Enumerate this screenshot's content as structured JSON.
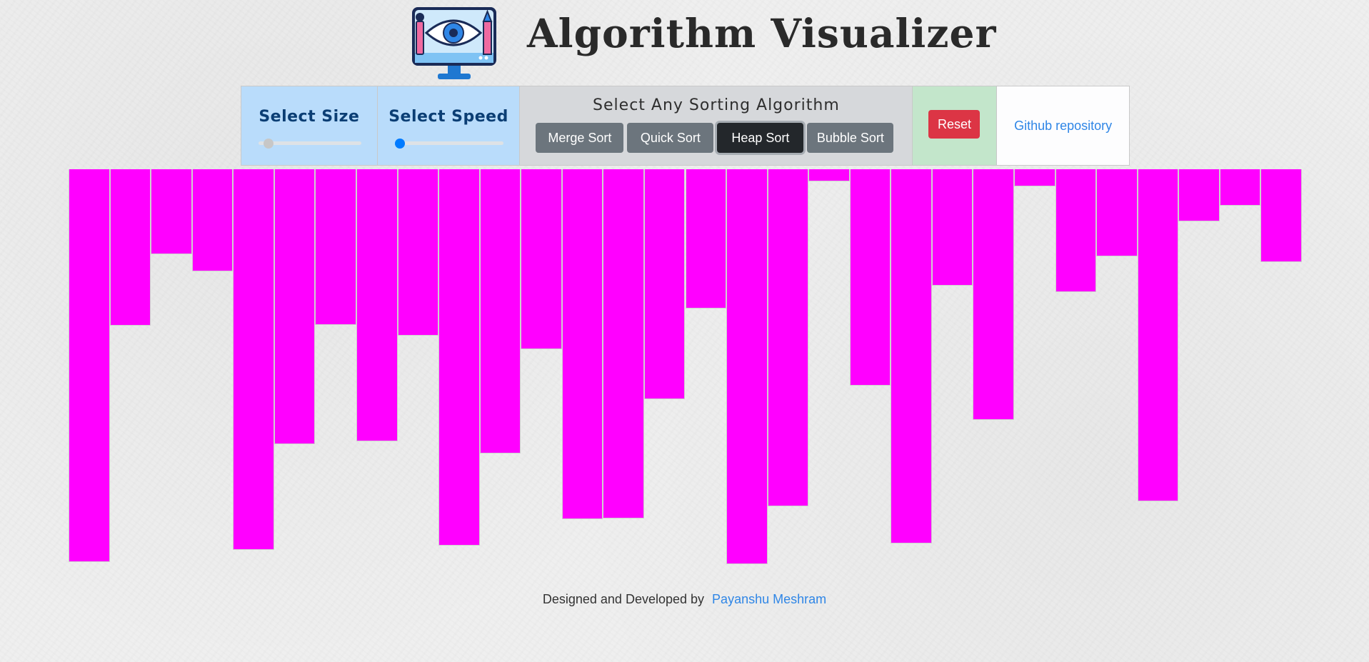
{
  "header": {
    "title": "Algorithm Visualizer",
    "logo_icon": "monitor-eye-paintbrush-pencil-icon"
  },
  "controls": {
    "size": {
      "label": "Select Size",
      "value_fraction": 0.05
    },
    "speed": {
      "label": "Select Speed",
      "value_fraction": 0.0
    },
    "algorithms": {
      "title": "Select Any Sorting Algorithm",
      "buttons": [
        {
          "label": "Merge Sort",
          "active": false
        },
        {
          "label": "Quick Sort",
          "active": false
        },
        {
          "label": "Heap Sort",
          "active": true
        },
        {
          "label": "Bubble Sort",
          "active": false
        }
      ]
    },
    "reset_label": "Reset",
    "github_label": "Github repository"
  },
  "bars": {
    "color": "#ff00ff",
    "count": 30,
    "values": [
      550,
      219,
      119,
      143,
      533,
      385,
      218,
      381,
      233,
      527,
      398,
      252,
      490,
      489,
      322,
      195,
      553,
      472,
      17,
      303,
      524,
      163,
      351,
      24,
      172,
      122,
      465,
      73,
      51,
      130
    ]
  },
  "footer": {
    "text": "Designed and Developed by",
    "author_link": "Payanshu Meshram"
  },
  "colors": {
    "size_panel": "#b9dcfb",
    "algo_panel": "#d6d8db",
    "reset_panel": "#c3e6cb",
    "reset_button": "#dc3545",
    "algo_button": "#6c757d",
    "algo_button_active": "#23272b",
    "link": "#2f86e6"
  }
}
